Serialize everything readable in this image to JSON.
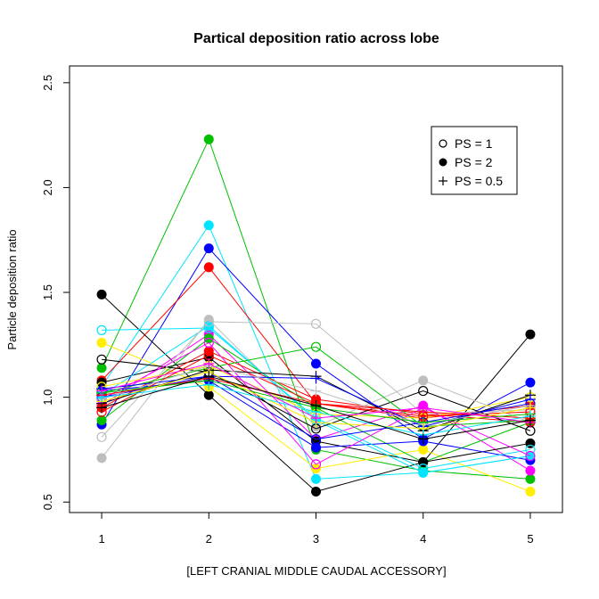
{
  "chart_data": {
    "type": "line",
    "title": "Partical deposition ratio across lobe",
    "xlabel": "[LEFT  CRANIAL  MIDDLE  CAUDAL  ACCESSORY]",
    "ylabel": "Particle deposition ratio",
    "x": [
      1,
      2,
      3,
      4,
      5
    ],
    "x_ticks": [
      "1",
      "2",
      "3",
      "4",
      "5"
    ],
    "y_ticks": [
      "0.5",
      "1.0",
      "1.5",
      "2.0",
      "2.5"
    ],
    "xlim": [
      0.7,
      5.3
    ],
    "ylim": [
      0.45,
      2.58
    ],
    "grid": false,
    "legend": {
      "position": "top-right",
      "entries": [
        {
          "label": "PS = 1",
          "marker": "open-circle"
        },
        {
          "label": "PS = 2",
          "marker": "filled-circle"
        },
        {
          "label": "PS = 0.5",
          "marker": "plus"
        }
      ]
    },
    "series": [
      {
        "color": "#00c000",
        "marker": "filled-circle",
        "values": [
          1.14,
          2.23,
          0.75,
          0.65,
          0.61
        ]
      },
      {
        "color": "#00e5ff",
        "marker": "filled-circle",
        "values": [
          1.05,
          1.82,
          0.61,
          0.64,
          0.72
        ]
      },
      {
        "color": "#0000ff",
        "marker": "filled-circle",
        "values": [
          0.87,
          1.71,
          1.16,
          0.8,
          1.07
        ]
      },
      {
        "color": "#ff0000",
        "marker": "filled-circle",
        "values": [
          1.08,
          1.62,
          0.97,
          0.9,
          0.96
        ]
      },
      {
        "color": "#000000",
        "marker": "filled-circle",
        "values": [
          1.49,
          1.01,
          0.55,
          0.69,
          1.3
        ]
      },
      {
        "color": "#ffee00",
        "marker": "filled-circle",
        "values": [
          1.26,
          1.05,
          0.66,
          0.75,
          0.55
        ]
      },
      {
        "color": "#ff00ff",
        "marker": "filled-circle",
        "values": [
          0.96,
          1.3,
          0.8,
          0.96,
          0.65
        ]
      },
      {
        "color": "#bebebe",
        "marker": "filled-circle",
        "values": [
          0.71,
          1.37,
          0.86,
          1.08,
          0.88
        ]
      },
      {
        "color": "#00c000",
        "marker": "filled-circle",
        "values": [
          0.89,
          1.28,
          0.95,
          0.69,
          0.88
        ]
      },
      {
        "color": "#000000",
        "marker": "filled-circle",
        "values": [
          1.07,
          1.19,
          0.79,
          0.69,
          0.78
        ]
      },
      {
        "color": "#0000ff",
        "marker": "filled-circle",
        "values": [
          1.03,
          1.08,
          0.76,
          0.79,
          0.7
        ]
      },
      {
        "color": "#ff0000",
        "marker": "filled-circle",
        "values": [
          0.95,
          1.22,
          0.99,
          0.92,
          0.88
        ]
      },
      {
        "color": "#00e5ff",
        "marker": "filled-circle",
        "values": [
          1.01,
          1.34,
          0.89,
          0.64,
          0.72
        ]
      },
      {
        "color": "#00e5ff",
        "marker": "open-circle",
        "values": [
          1.32,
          1.33,
          0.9,
          0.66,
          0.75
        ]
      },
      {
        "color": "#000000",
        "marker": "open-circle",
        "values": [
          1.18,
          1.12,
          0.85,
          1.03,
          0.84
        ]
      },
      {
        "color": "#bebebe",
        "marker": "open-circle",
        "values": [
          0.81,
          1.36,
          1.35,
          0.92,
          0.94
        ]
      },
      {
        "color": "#00c000",
        "marker": "open-circle",
        "values": [
          1.02,
          1.14,
          1.24,
          0.86,
          0.89
        ]
      },
      {
        "color": "#ff00ff",
        "marker": "open-circle",
        "values": [
          0.99,
          1.26,
          0.68,
          0.95,
          0.72
        ]
      },
      {
        "color": "#ffee00",
        "marker": "open-circle",
        "values": [
          1.05,
          1.15,
          0.92,
          0.9,
          1.0
        ]
      },
      {
        "color": "#0000ff",
        "marker": "open-circle",
        "values": [
          1.0,
          1.1,
          0.8,
          0.88,
          0.97
        ]
      },
      {
        "color": "#ff0000",
        "marker": "open-circle",
        "values": [
          0.93,
          1.2,
          0.97,
          0.91,
          0.93
        ]
      },
      {
        "color": "#000000",
        "marker": "plus",
        "values": [
          0.97,
          1.13,
          1.1,
          0.84,
          1.01
        ]
      },
      {
        "color": "#0000ff",
        "marker": "plus",
        "values": [
          1.04,
          1.1,
          1.09,
          0.86,
          0.99
        ]
      },
      {
        "color": "#bebebe",
        "marker": "plus",
        "values": [
          0.99,
          1.15,
          1.03,
          0.87,
          0.96
        ]
      },
      {
        "color": "#ff0000",
        "marker": "plus",
        "values": [
          1.01,
          1.09,
          0.97,
          0.93,
          0.9
        ]
      },
      {
        "color": "#00c000",
        "marker": "plus",
        "values": [
          1.02,
          1.08,
          0.95,
          0.88,
          0.92
        ]
      },
      {
        "color": "#ffee00",
        "marker": "plus",
        "values": [
          0.98,
          1.12,
          0.88,
          0.85,
          0.95
        ]
      },
      {
        "color": "#00e5ff",
        "marker": "plus",
        "values": [
          1.0,
          1.06,
          0.93,
          0.82,
          0.91
        ]
      },
      {
        "color": "#ff00ff",
        "marker": "plus",
        "values": [
          1.03,
          1.16,
          0.9,
          0.95,
          0.88
        ]
      },
      {
        "color": "#000000",
        "marker": "plus",
        "values": [
          0.95,
          1.1,
          0.96,
          0.8,
          0.89
        ]
      }
    ]
  }
}
